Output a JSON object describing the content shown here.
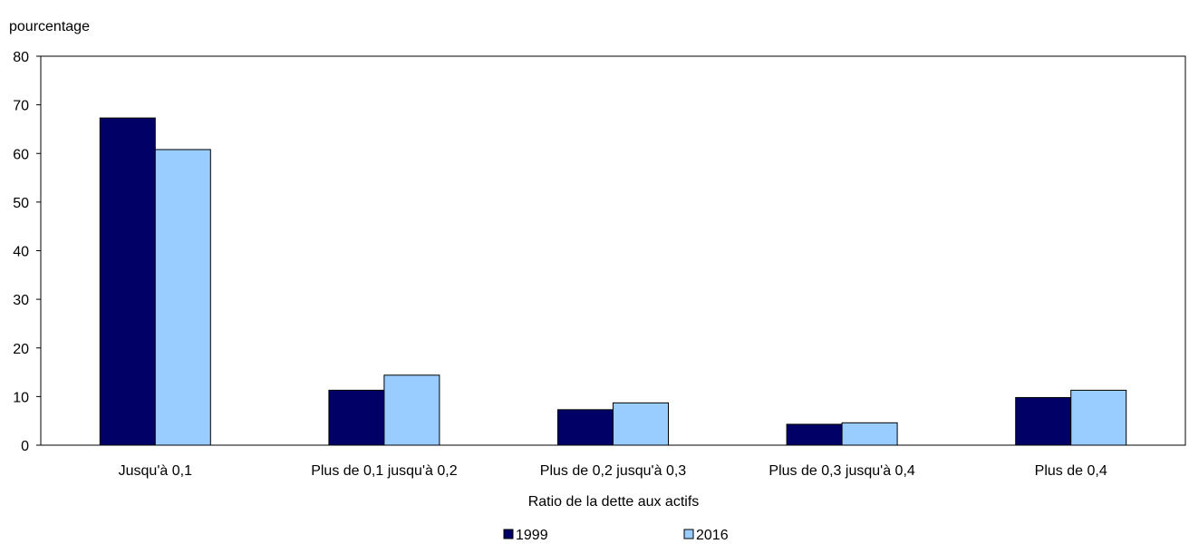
{
  "chart_data": {
    "type": "bar",
    "y_unit_label": "pourcentage",
    "xlabel": "Ratio de la dette aux actifs",
    "ylim": [
      0,
      80
    ],
    "y_ticks": [
      "0",
      "10",
      "20",
      "30",
      "40",
      "50",
      "60",
      "70",
      "80"
    ],
    "categories": [
      "Jusqu'à 0,1",
      "Plus de 0,1 jusqu'à 0,2",
      "Plus de 0,2 jusqu'à 0,3",
      "Plus de 0,3 jusqu'à 0,4",
      "Plus de 0,4"
    ],
    "series": [
      {
        "name": "1999",
        "color": "#000066",
        "values": [
          67.3,
          11.3,
          7.3,
          4.3,
          9.8
        ]
      },
      {
        "name": "2016",
        "color": "#99ccff",
        "values": [
          60.8,
          14.4,
          8.7,
          4.6,
          11.3
        ]
      }
    ],
    "legend_position": "bottom-center",
    "grid": false
  }
}
